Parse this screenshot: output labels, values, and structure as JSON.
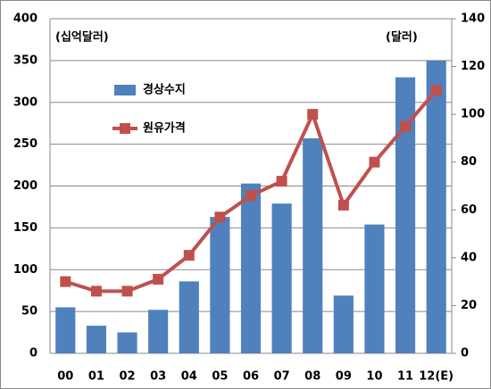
{
  "chart_data": {
    "type": "bar",
    "categories": [
      "00",
      "01",
      "02",
      "03",
      "04",
      "05",
      "06",
      "07",
      "08",
      "09",
      "10",
      "11",
      "12(E)"
    ],
    "series": [
      {
        "name": "경상수지",
        "type": "bar",
        "color": "#4f81bd",
        "values": [
          55,
          33,
          25,
          52,
          86,
          163,
          203,
          179,
          257,
          69,
          154,
          330,
          350
        ]
      },
      {
        "name": "원유가격",
        "type": "line",
        "axis": "y2",
        "color": "#c0504d",
        "values": [
          30,
          26,
          26,
          31,
          41,
          57,
          66,
          72,
          100,
          62,
          80,
          95,
          110
        ]
      }
    ],
    "ylim": [
      0,
      400
    ],
    "yticks": [
      0,
      50,
      100,
      150,
      200,
      250,
      300,
      350,
      400
    ],
    "y2lim": [
      0,
      140
    ],
    "y2ticks": [
      0,
      20,
      40,
      60,
      80,
      100,
      120,
      140
    ],
    "annotations": [
      "(십억달러)",
      "(달러)"
    ],
    "grid": true,
    "legend": "upper-left"
  }
}
